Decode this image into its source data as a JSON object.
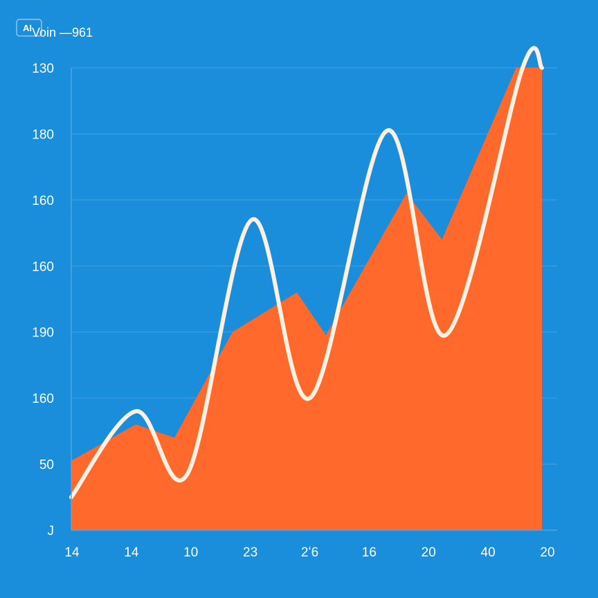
{
  "colors": {
    "background": "#1a8ddb",
    "area_fill": "#ff6a2c",
    "line_stroke": "#fdf1e4",
    "grid": "#4fa8e8",
    "text": "#ffffff"
  },
  "legend": {
    "badge": "AI",
    "label": "Voin —961"
  },
  "chart_data": {
    "type": "area",
    "x_labels": [
      "14",
      "14",
      "10",
      "23",
      "2ʻ6",
      "16",
      "20",
      "40",
      "20"
    ],
    "y_labels": [
      "130",
      "180",
      "160",
      "160",
      "190",
      "160",
      "50",
      "J"
    ],
    "ylim": [
      0,
      7
    ],
    "grid": true,
    "area": [
      {
        "x": 0.0,
        "y": 1.05
      },
      {
        "x": 1.0,
        "y": 1.6
      },
      {
        "x": 1.6,
        "y": 1.4
      },
      {
        "x": 2.5,
        "y": 3.0
      },
      {
        "x": 3.5,
        "y": 3.6
      },
      {
        "x": 3.95,
        "y": 2.95
      },
      {
        "x": 5.2,
        "y": 5.1
      },
      {
        "x": 5.75,
        "y": 4.4
      },
      {
        "x": 6.9,
        "y": 7.0
      },
      {
        "x": 7.3,
        "y": 7.0
      },
      {
        "x": 7.3,
        "y": 0.0
      },
      {
        "x": 0.0,
        "y": 0.0
      }
    ],
    "line": [
      {
        "x": 0.0,
        "y": 0.5
      },
      {
        "x": 1.0,
        "y": 1.8
      },
      {
        "x": 1.8,
        "y": 0.85
      },
      {
        "x": 2.8,
        "y": 4.7
      },
      {
        "x": 3.7,
        "y": 2.0
      },
      {
        "x": 4.9,
        "y": 6.05
      },
      {
        "x": 5.8,
        "y": 2.95
      },
      {
        "x": 7.0,
        "y": 7.0
      },
      {
        "x": 7.3,
        "y": 7.0
      }
    ],
    "x_min": 0,
    "x_max": 7.3
  }
}
